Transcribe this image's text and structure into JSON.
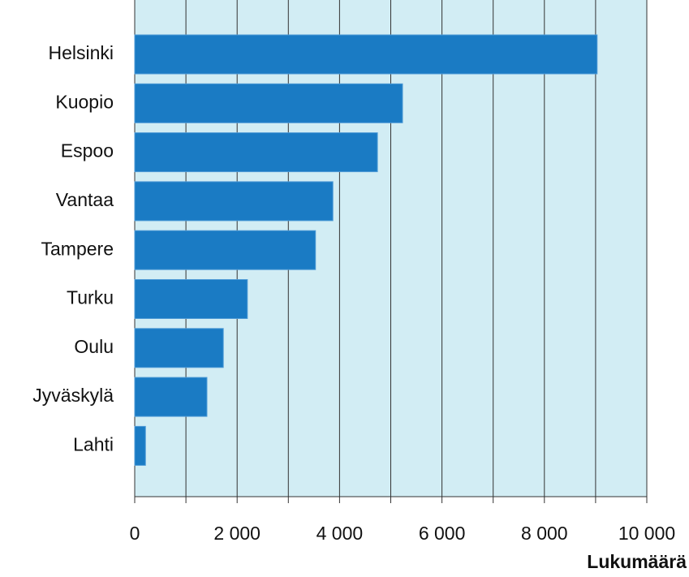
{
  "chart_data": {
    "type": "barh",
    "categories": [
      "Helsinki",
      "Kuopio",
      "Espoo",
      "Vantaa",
      "Tampere",
      "Turku",
      "Oulu",
      "Jyväskylä",
      "Lahti"
    ],
    "values": [
      9030,
      5230,
      4740,
      3870,
      3530,
      2200,
      1730,
      1410,
      210
    ],
    "color": "#1a7bc4",
    "background": "#d2edf4",
    "xlabel": "Lukumäärä",
    "xlim": [
      0,
      10000
    ],
    "xticks": [
      0,
      {
        "value": 2000,
        "label": "2 000"
      },
      {
        "value": 4000,
        "label": "4 000"
      },
      {
        "value": 6000,
        "label": "6 000"
      },
      {
        "value": 8000,
        "label": "8 000"
      },
      {
        "value": 10000,
        "label": "10 000"
      }
    ],
    "minor_xticks": [
      1000,
      3000,
      5000,
      7000,
      9000
    ],
    "grid": true
  }
}
